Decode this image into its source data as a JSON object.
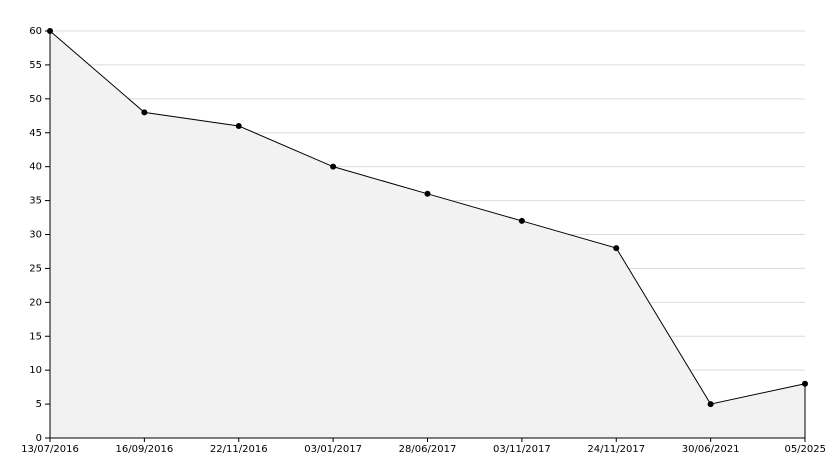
{
  "chart_data": {
    "type": "area",
    "categories": [
      "13/07/2016",
      "16/09/2016",
      "22/11/2016",
      "03/01/2017",
      "28/06/2017",
      "03/11/2017",
      "24/11/2017",
      "30/06/2021",
      "05/2025"
    ],
    "values": [
      60,
      48,
      46,
      40,
      36,
      32,
      28,
      5,
      8
    ],
    "color": "#000000",
    "fill_color": "#f2f2f2",
    "ylim": [
      0,
      60
    ],
    "yticks": [
      0,
      5,
      10,
      15,
      20,
      25,
      30,
      35,
      40,
      45,
      50,
      55,
      60
    ],
    "grid": true
  }
}
